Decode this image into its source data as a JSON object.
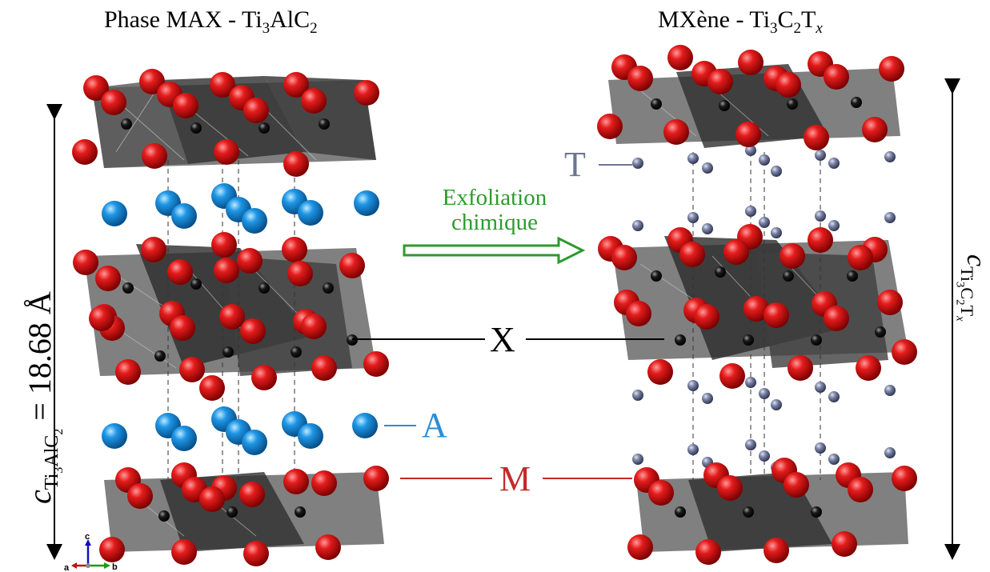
{
  "titles": {
    "max": {
      "main": "Phase MAX - Ti",
      "s1": "3",
      "mid": "AlC",
      "s2": "2"
    },
    "mxene": {
      "main": "MXène - Ti",
      "s1": "3",
      "mid": "C",
      "s2": "2",
      "mid2": "T",
      "s3": "x"
    }
  },
  "dimension_max": {
    "sym": "c",
    "sub": "Ti",
    "sub2": "3",
    "sub3": "AlC",
    "sub4": "2",
    "eq": " = 18.68 Å"
  },
  "dimension_mxene": {
    "sym": "c",
    "sub": "Ti",
    "sub2": "3",
    "sub3": "C",
    "sub4": "2",
    "sub5": "T",
    "sub6": "x"
  },
  "arrow": {
    "line1": "Exfoliation",
    "line2": "chimique"
  },
  "labels": {
    "T": "T",
    "A": "A",
    "X": "X",
    "M": "M"
  },
  "axes": {
    "a": "a",
    "b": "b",
    "c": "c"
  },
  "colors": {
    "M": "#d42020",
    "X": "#111111",
    "A": "#1e90d8",
    "T": "#6d7596",
    "arrow": "#2e9a2e",
    "octahedra": "#4a4a4a",
    "labelT": "#6d7596",
    "labelA": "#2a8fd6",
    "labelM": "#c42a2a"
  }
}
